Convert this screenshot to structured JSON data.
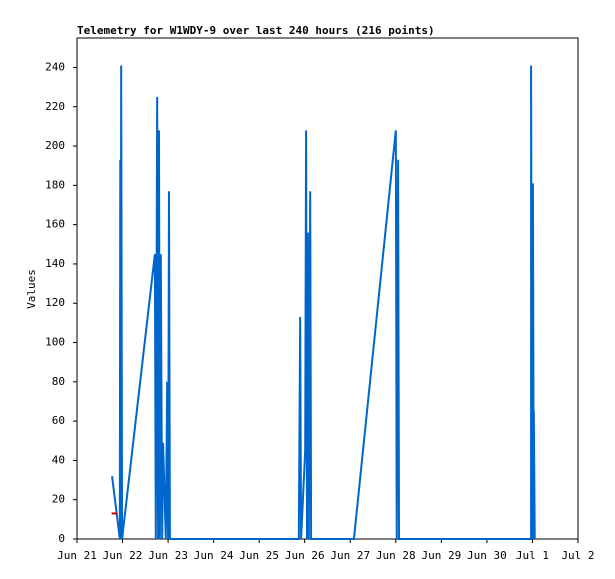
{
  "chart_data": {
    "type": "line",
    "title": "Telemetry for W1WDY-9 over last 240 hours (216 points)",
    "y_label": "Values",
    "xlim": [
      0,
      11
    ],
    "ylim": [
      0,
      255
    ],
    "xticks": [
      {
        "value": 0,
        "label": "Jun 21"
      },
      {
        "value": 1,
        "label": "Jun 22"
      },
      {
        "value": 2,
        "label": "Jun 23"
      },
      {
        "value": 3,
        "label": "Jun 24"
      },
      {
        "value": 4,
        "label": "Jun 25"
      },
      {
        "value": 5,
        "label": "Jun 26"
      },
      {
        "value": 6,
        "label": "Jun 27"
      },
      {
        "value": 7,
        "label": "Jun 28"
      },
      {
        "value": 8,
        "label": "Jun 29"
      },
      {
        "value": 9,
        "label": "Jun 30"
      },
      {
        "value": 10,
        "label": "Jul 1"
      },
      {
        "value": 11,
        "label": "Jul 2"
      }
    ],
    "yticks": [
      0,
      20,
      40,
      60,
      80,
      100,
      120,
      140,
      160,
      180,
      200,
      220,
      240
    ],
    "series": [
      {
        "color": "#0066cc",
        "x": [
          0.77,
          0.94,
          0.95,
          0.96,
          0.97,
          0.99,
          1.71,
          1.73,
          1.76,
          1.78,
          1.8,
          1.82,
          1.84,
          1.87,
          1.89,
          1.95,
          1.98,
          2.0,
          2.02,
          2.04,
          4.87,
          4.9,
          4.92,
          5.01,
          5.03,
          5.05,
          5.07,
          5.09,
          5.12,
          5.14,
          6.08,
          7.0,
          7.02,
          7.05,
          7.07,
          9.97,
          9.97,
          9.99,
          10.01,
          10.03,
          10.03,
          10.05
        ],
        "values": [
          32,
          0,
          193,
          0,
          241,
          0,
          145,
          0,
          225,
          0,
          208,
          0,
          145,
          0,
          49,
          0,
          80,
          0,
          177,
          0,
          0,
          113,
          0,
          45,
          208,
          0,
          156,
          0,
          177,
          0,
          0,
          208,
          0,
          193,
          0,
          0,
          241,
          0,
          181,
          0,
          65,
          0
        ]
      },
      {
        "color": "#cc0000",
        "x": [
          0.76,
          0.88
        ],
        "values": [
          13,
          13
        ]
      }
    ]
  }
}
